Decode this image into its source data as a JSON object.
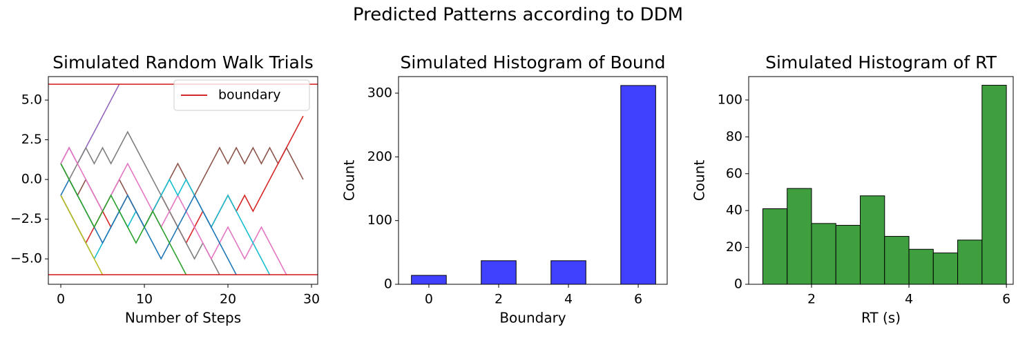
{
  "figure_title": "Predicted Patterns according to DDM",
  "chart_data": [
    {
      "type": "line",
      "title": "Simulated Random Walk Trials",
      "xlabel": "Number of Steps",
      "x": [
        0,
        1,
        2,
        3,
        4,
        5,
        6,
        7,
        8,
        9,
        10,
        11,
        12,
        13,
        14,
        15,
        16,
        17,
        18,
        19,
        20,
        21,
        22,
        23,
        24,
        25,
        26,
        27,
        28,
        29
      ],
      "series": [
        {
          "color": "#9467bd",
          "values": [
            1,
            2,
            1,
            2,
            3,
            4,
            5,
            6,
            null,
            null,
            null,
            null,
            null,
            null,
            null,
            null,
            null,
            null,
            null,
            null,
            null,
            null,
            null,
            null,
            null,
            null,
            null,
            null,
            null,
            null
          ]
        },
        {
          "color": "#8c564b",
          "values": [
            1,
            0,
            -1,
            0,
            -1,
            -2,
            -1,
            0,
            -1,
            -2,
            -3,
            -2,
            -1,
            0,
            1,
            0,
            -1,
            0,
            1,
            2,
            1,
            2,
            1,
            2,
            1,
            2,
            1,
            2,
            1,
            0
          ]
        },
        {
          "color": "#d62728",
          "values": [
            -1,
            -2,
            -3,
            -4,
            -3,
            -2,
            -3,
            -2,
            -1,
            -2,
            -3,
            -2,
            -1,
            -2,
            -3,
            -4,
            -3,
            -2,
            -3,
            -2,
            -1,
            -2,
            -1,
            -2,
            -1,
            0,
            1,
            2,
            3,
            4
          ]
        },
        {
          "color": "#7f7f7f",
          "values": [
            1,
            0,
            1,
            2,
            1,
            2,
            1,
            2,
            3,
            2,
            1,
            0,
            -1,
            -2,
            -3,
            -4,
            -5,
            -4,
            -5,
            -6,
            null,
            null,
            null,
            null,
            null,
            null,
            null,
            null,
            null,
            null
          ]
        },
        {
          "color": "#e377c2",
          "values": [
            1,
            2,
            1,
            0,
            -1,
            -2,
            -1,
            0,
            1,
            0,
            -1,
            -2,
            -3,
            -2,
            -1,
            -2,
            -3,
            -4,
            -5,
            -4,
            -3,
            -4,
            -5,
            -4,
            -3,
            -4,
            -5,
            -6,
            null,
            null
          ]
        },
        {
          "color": "#17becf",
          "values": [
            -1,
            -2,
            -3,
            -4,
            -5,
            -4,
            -3,
            -2,
            -3,
            -2,
            -3,
            -2,
            -1,
            0,
            -1,
            0,
            -1,
            -2,
            -3,
            -2,
            -1,
            -2,
            -3,
            -4,
            -5,
            -6,
            null,
            null,
            null,
            null
          ]
        },
        {
          "color": "#bcbd22",
          "values": [
            -1,
            -2,
            -3,
            -4,
            -5,
            -6,
            null,
            null,
            null,
            null,
            null,
            null,
            null,
            null,
            null,
            null,
            null,
            null,
            null,
            null,
            null,
            null,
            null,
            null,
            null,
            null,
            null,
            null,
            null,
            null
          ]
        },
        {
          "color": "#1f77b4",
          "values": [
            -1,
            0,
            -1,
            -2,
            -3,
            -4,
            -3,
            -2,
            -1,
            -2,
            -3,
            -4,
            -5,
            -4,
            -3,
            -2,
            -1,
            -2,
            -3,
            -4,
            -5,
            -6,
            null,
            null,
            null,
            null,
            null,
            null,
            null,
            null
          ]
        },
        {
          "color": "#2ca02c",
          "values": [
            1,
            0,
            -1,
            -2,
            -3,
            -2,
            -1,
            -2,
            -3,
            -4,
            -3,
            -2,
            -3,
            -4,
            -5,
            -6,
            null,
            null,
            null,
            null,
            null,
            null,
            null,
            null,
            null,
            null,
            null,
            null,
            null,
            null
          ]
        }
      ],
      "boundary": {
        "name": "boundary",
        "color": "#d62728",
        "values": [
          6,
          -6
        ]
      },
      "legend": "upper right",
      "xlim": [
        -1.49,
        30.74
      ],
      "xticks": [
        0,
        10,
        20,
        30
      ],
      "ylim": [
        -6.6,
        6.48
      ],
      "yticks": [
        {
          "value": -5,
          "label": "−5.0"
        },
        {
          "value": -2.5,
          "label": "−2.5"
        },
        {
          "value": 0,
          "label": "0.0"
        },
        {
          "value": 2.5,
          "label": "2.5"
        },
        {
          "value": 5,
          "label": "5.0"
        }
      ]
    },
    {
      "type": "bar",
      "title": "Simulated Histogram of Bound",
      "xlabel": "Boundary",
      "ylabel": "Count",
      "x": [
        0,
        2,
        4,
        6
      ],
      "values": [
        14,
        37,
        37,
        312
      ],
      "bar_width": 1,
      "color": "#4040ff",
      "edgecolor": "#000000",
      "xlim": [
        -0.87,
        6.83
      ],
      "xticks": [
        0,
        2,
        4,
        6
      ],
      "ylim": [
        0,
        326
      ],
      "yticks": [
        0,
        100,
        200,
        300
      ]
    },
    {
      "type": "histogram",
      "title": "Simulated Histogram of RT",
      "xlabel": "RT (s)",
      "ylabel": "Count",
      "bins": [
        1.0,
        1.5,
        2.0,
        2.5,
        3.0,
        3.5,
        4.0,
        4.5,
        5.0,
        5.5,
        6.0
      ],
      "values": [
        41,
        52,
        33,
        32,
        48,
        26,
        19,
        17,
        24,
        108
      ],
      "color": "#3f9f3f",
      "edgecolor": "#000000",
      "xlim": [
        0.71,
        6.14
      ],
      "xticks": [
        2,
        4,
        6
      ],
      "ylim": [
        0,
        112.7
      ],
      "yticks": [
        0,
        20,
        40,
        60,
        80,
        100
      ]
    }
  ]
}
